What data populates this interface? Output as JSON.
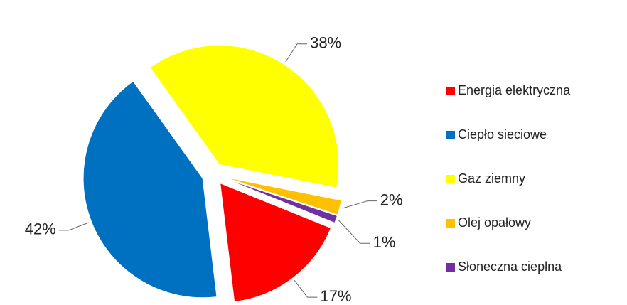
{
  "chart_data": {
    "type": "pie",
    "categories": [
      "Energia elektryczna",
      "Ciepło sieciowe",
      "Gaz ziemny",
      "Olej opałowy",
      "Słoneczna cieplna"
    ],
    "values": [
      17,
      42,
      38,
      2,
      1
    ],
    "value_labels": [
      "17%",
      "42%",
      "38%",
      "2%",
      "1%"
    ],
    "colors": [
      "#ff0000",
      "#0070c0",
      "#ffff00",
      "#ffc000",
      "#7030a0"
    ],
    "legend": "right"
  }
}
